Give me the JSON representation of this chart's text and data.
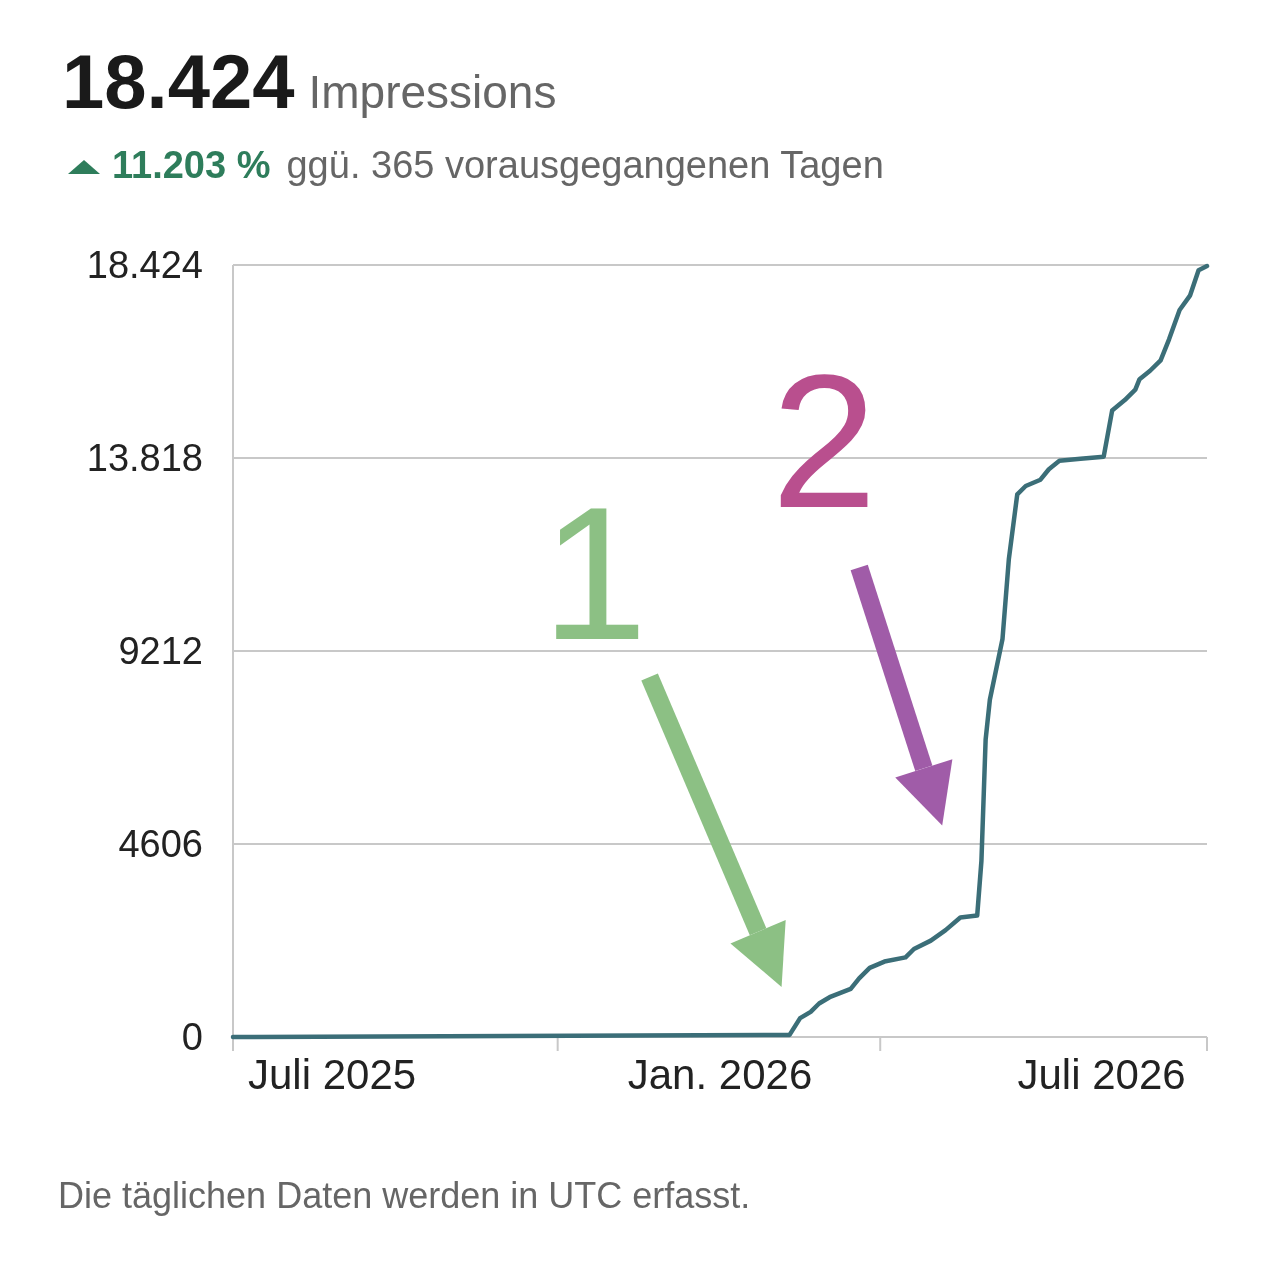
{
  "chart_data": {
    "type": "line",
    "title": "18.424",
    "subtitle": "Impressions",
    "annotations": [
      "11.203 %",
      "ggü. 365 vorausgegangenen Tagen",
      "Die täglichen Daten werden in UTC erfasst.",
      {
        "text": "1",
        "x": "2026-02-03",
        "y": 0
      },
      {
        "text": "2",
        "x": "2026-05-03",
        "y": 2900
      }
    ],
    "x": [
      "2025-05-15",
      "2026-02-03",
      "2026-02-08",
      "2026-02-13",
      "2026-02-17",
      "2026-02-22",
      "2026-03-04",
      "2026-03-08",
      "2026-03-13",
      "2026-03-20",
      "2026-03-30",
      "2026-04-03",
      "2026-04-11",
      "2026-04-18",
      "2026-04-25",
      "2026-05-03",
      "2026-05-05",
      "2026-05-07",
      "2026-05-09",
      "2026-05-15",
      "2026-05-18",
      "2026-05-22",
      "2026-05-26",
      "2026-06-02",
      "2026-06-06",
      "2026-06-11",
      "2026-06-21",
      "2026-07-02",
      "2026-07-06",
      "2026-07-12",
      "2026-07-17",
      "2026-07-19",
      "2026-07-24",
      "2026-07-29",
      "2026-08-02",
      "2026-08-07",
      "2026-08-12",
      "2026-08-16",
      "2026-08-20"
    ],
    "series": [
      {
        "color": "#3b6e78",
        "values": [
          0,
          50,
          450,
          600,
          800,
          950,
          1150,
          1400,
          1650,
          1800,
          1900,
          2100,
          2300,
          2550,
          2850,
          2900,
          4200,
          7100,
          8050,
          9500,
          11400,
          12950,
          13150,
          13300,
          13550,
          13750,
          13800,
          13850,
          14950,
          15200,
          15450,
          15700,
          15900,
          16150,
          16650,
          17350,
          17700,
          18300,
          18400
        ]
      }
    ],
    "xlim": [
      "2025-05-15",
      "2026-08-20"
    ],
    "xticks": [
      {
        "value": "2025-05-15",
        "label": null
      },
      {
        "value": "2025-07-01",
        "label": "Juli 2025"
      },
      {
        "value": "2025-10-16",
        "label": null
      },
      {
        "value": "2026-01-01",
        "label": "Jan. 2026"
      },
      {
        "value": "2026-03-18",
        "label": null
      },
      {
        "value": "2026-07-01",
        "label": "Juli 2026"
      },
      {
        "value": "2026-08-20",
        "label": null
      }
    ],
    "ylim": [
      0,
      18424
    ],
    "yticks": [
      0,
      4606,
      9212,
      {
        "value": 13818,
        "label": "13.818"
      },
      {
        "value": 18424,
        "label": "18.424"
      }
    ],
    "grid": "y",
    "marker": "none",
    "line_style": "solid"
  }
}
